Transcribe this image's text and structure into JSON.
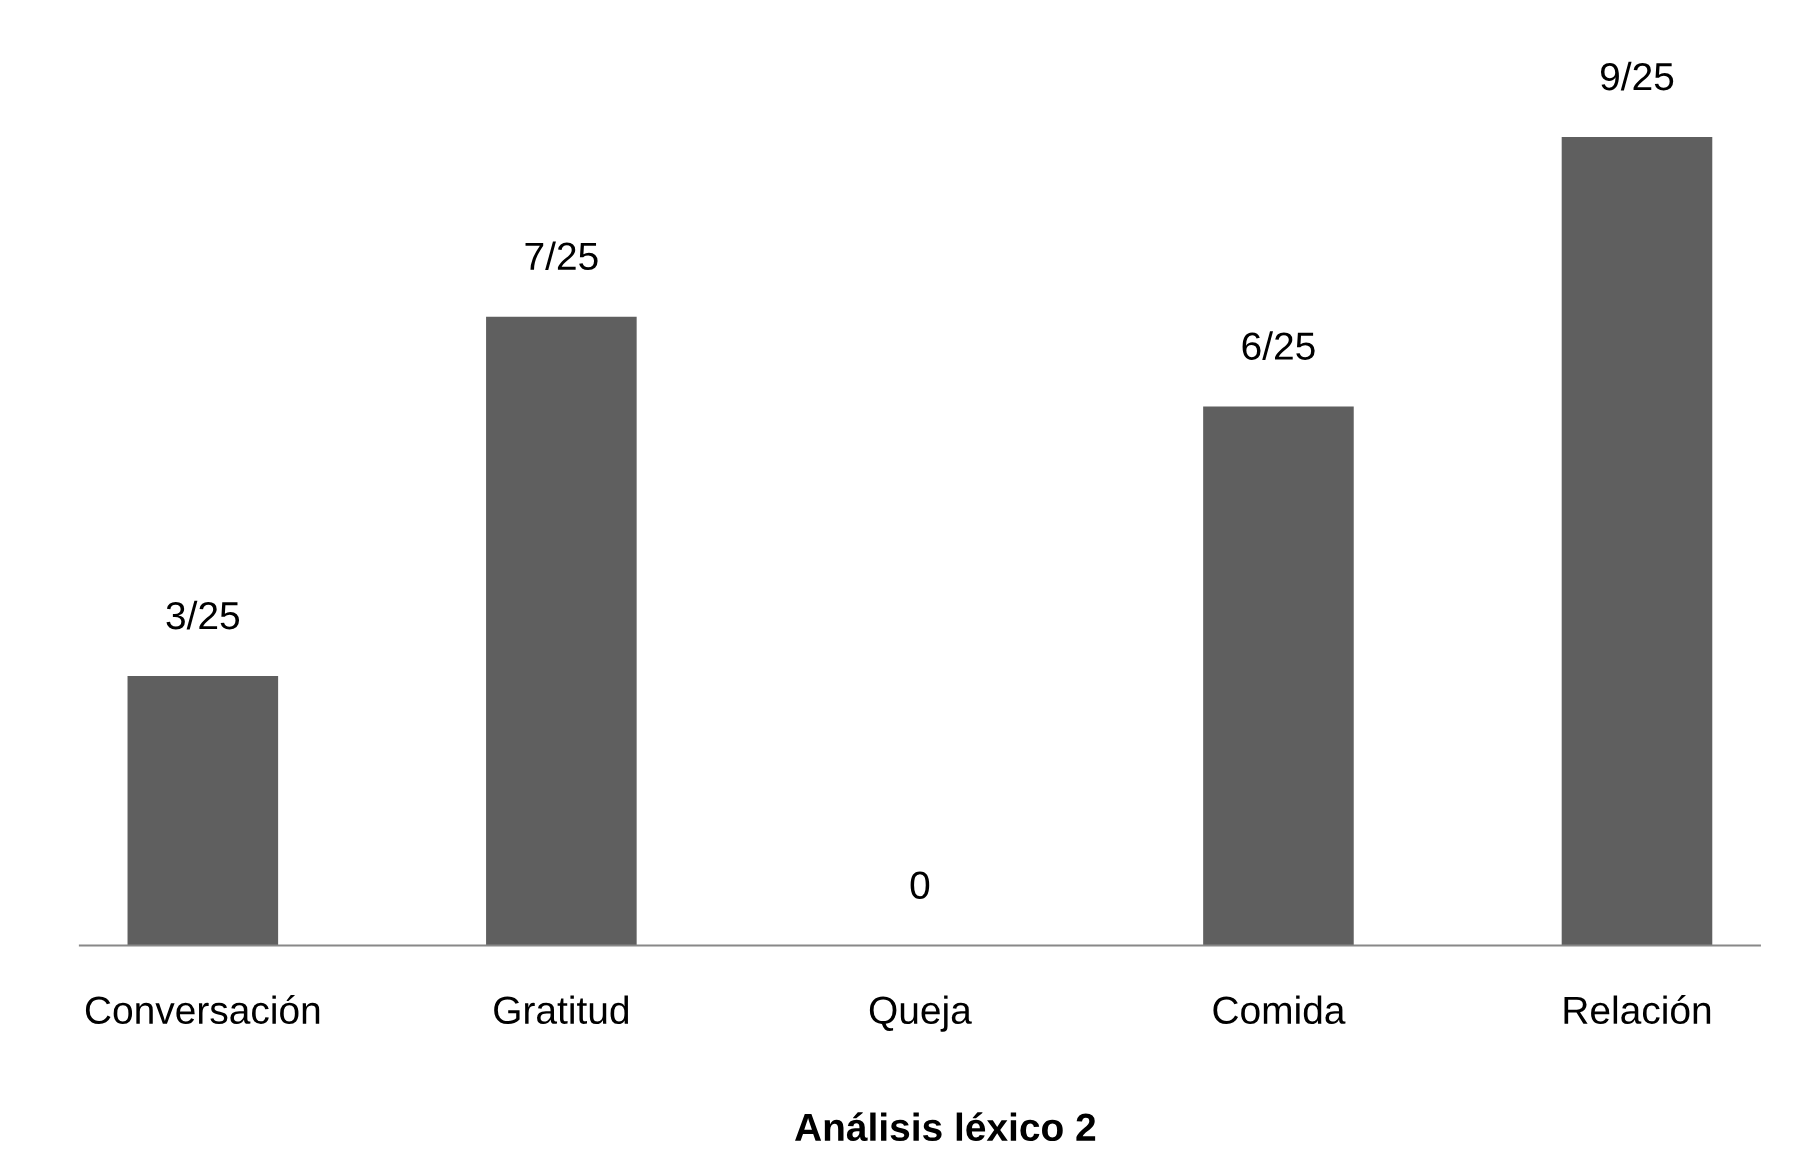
{
  "chart_data": {
    "type": "bar",
    "title": "Análisis léxico 2",
    "categories": [
      "Conversación",
      "Gratitud",
      "Queja",
      "Comida",
      "Relación"
    ],
    "values": [
      3,
      7,
      0,
      6,
      9
    ],
    "value_labels": [
      "3/25",
      "7/25",
      "0",
      "6/25",
      "9/25"
    ],
    "color": "#5f5f5f",
    "grid": false,
    "legend": false
  }
}
